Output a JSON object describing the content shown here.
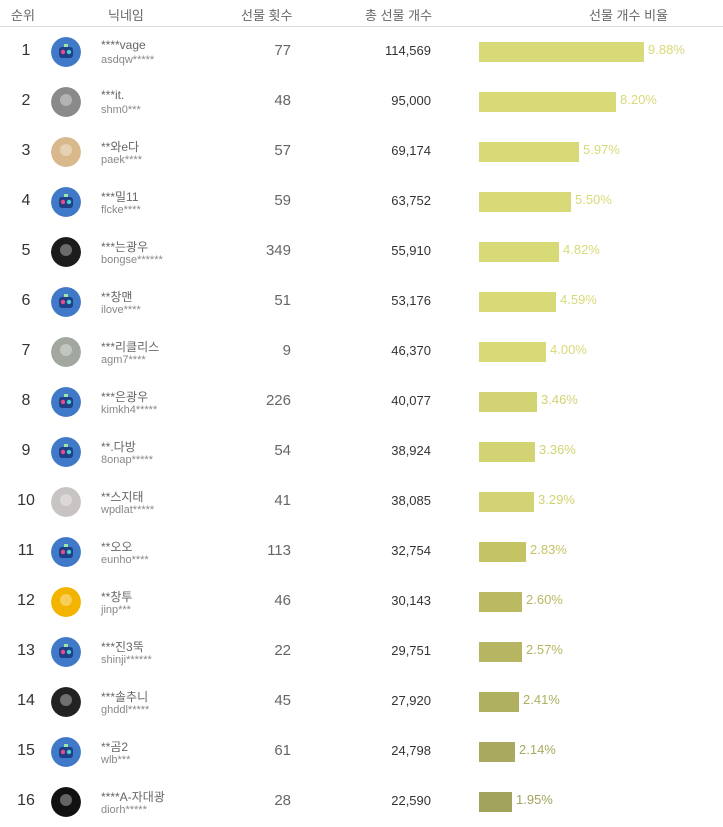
{
  "columns": {
    "rank": "순위",
    "nickname": "닉네임",
    "gift_count": "선물 횟수",
    "total_gifts": "총 선물 개수",
    "ratio": "선물 개수 비율"
  },
  "rows": [
    {
      "rank": "1",
      "avatar": "default-logo-icon",
      "nickname": "****vage",
      "user_id": "asdqw*****",
      "gift_count": "77",
      "total_gifts": "114,569",
      "ratio": "9.88%",
      "ratio_value": 9.88,
      "bar_color": "#d8da78"
    },
    {
      "rank": "2",
      "avatar": "photo-avatar",
      "nickname": "***it.",
      "user_id": "shm0***",
      "gift_count": "48",
      "total_gifts": "95,000",
      "ratio": "8.20%",
      "ratio_value": 8.2,
      "bar_color": "#d8da78"
    },
    {
      "rank": "3",
      "avatar": "photo-avatar",
      "nickname": "**와e다",
      "user_id": "paek****",
      "gift_count": "57",
      "total_gifts": "69,174",
      "ratio": "5.97%",
      "ratio_value": 5.97,
      "bar_color": "#d8da78"
    },
    {
      "rank": "4",
      "avatar": "default-logo-icon",
      "nickname": "***밀11",
      "user_id": "flcke****",
      "gift_count": "59",
      "total_gifts": "63,752",
      "ratio": "5.50%",
      "ratio_value": 5.5,
      "bar_color": "#d8da78"
    },
    {
      "rank": "5",
      "avatar": "photo-avatar",
      "nickname": "***는광우",
      "user_id": "bongse******",
      "gift_count": "349",
      "total_gifts": "55,910",
      "ratio": "4.82%",
      "ratio_value": 4.82,
      "bar_color": "#d8da78"
    },
    {
      "rank": "6",
      "avatar": "default-logo-icon",
      "nickname": "**창맨",
      "user_id": "ilove****",
      "gift_count": "51",
      "total_gifts": "53,176",
      "ratio": "4.59%",
      "ratio_value": 4.59,
      "bar_color": "#d8da78"
    },
    {
      "rank": "7",
      "avatar": "photo-avatar",
      "nickname": "***리클리스",
      "user_id": "agm7****",
      "gift_count": "9",
      "total_gifts": "46,370",
      "ratio": "4.00%",
      "ratio_value": 4.0,
      "bar_color": "#d8da78"
    },
    {
      "rank": "8",
      "avatar": "default-logo-icon",
      "nickname": "***은광우",
      "user_id": "kimkh4*****",
      "gift_count": "226",
      "total_gifts": "40,077",
      "ratio": "3.46%",
      "ratio_value": 3.46,
      "bar_color": "#d2d372"
    },
    {
      "rank": "9",
      "avatar": "default-logo-icon",
      "nickname": "**.다방",
      "user_id": "8onap*****",
      "gift_count": "54",
      "total_gifts": "38,924",
      "ratio": "3.36%",
      "ratio_value": 3.36,
      "bar_color": "#d2d372"
    },
    {
      "rank": "10",
      "avatar": "photo-avatar",
      "nickname": "**스지태",
      "user_id": "wpdlat*****",
      "gift_count": "41",
      "total_gifts": "38,085",
      "ratio": "3.29%",
      "ratio_value": 3.29,
      "bar_color": "#d2d372"
    },
    {
      "rank": "11",
      "avatar": "default-logo-icon",
      "nickname": "**오오",
      "user_id": "eunho****",
      "gift_count": "113",
      "total_gifts": "32,754",
      "ratio": "2.83%",
      "ratio_value": 2.83,
      "bar_color": "#c4c465"
    },
    {
      "rank": "12",
      "avatar": "photo-avatar",
      "nickname": "**창투",
      "user_id": "jinp***",
      "gift_count": "46",
      "total_gifts": "30,143",
      "ratio": "2.60%",
      "ratio_value": 2.6,
      "bar_color": "#b9ba62"
    },
    {
      "rank": "13",
      "avatar": "default-logo-icon",
      "nickname": "***진3뚝",
      "user_id": "shinji******",
      "gift_count": "22",
      "total_gifts": "29,751",
      "ratio": "2.57%",
      "ratio_value": 2.57,
      "bar_color": "#b6b662"
    },
    {
      "rank": "14",
      "avatar": "photo-avatar",
      "nickname": "***솔추니",
      "user_id": "ghddl*****",
      "gift_count": "45",
      "total_gifts": "27,920",
      "ratio": "2.41%",
      "ratio_value": 2.41,
      "bar_color": "#afb060"
    },
    {
      "rank": "15",
      "avatar": "default-logo-icon",
      "nickname": "**곰2",
      "user_id": "wlb***",
      "gift_count": "61",
      "total_gifts": "24,798",
      "ratio": "2.14%",
      "ratio_value": 2.14,
      "bar_color": "#a9aa5f"
    },
    {
      "rank": "16",
      "avatar": "photo-avatar",
      "nickname": "****A-자대광",
      "user_id": "diorh*****",
      "gift_count": "28",
      "total_gifts": "22,590",
      "ratio": "1.95%",
      "ratio_value": 1.95,
      "bar_color": "#a2a35c"
    }
  ]
}
